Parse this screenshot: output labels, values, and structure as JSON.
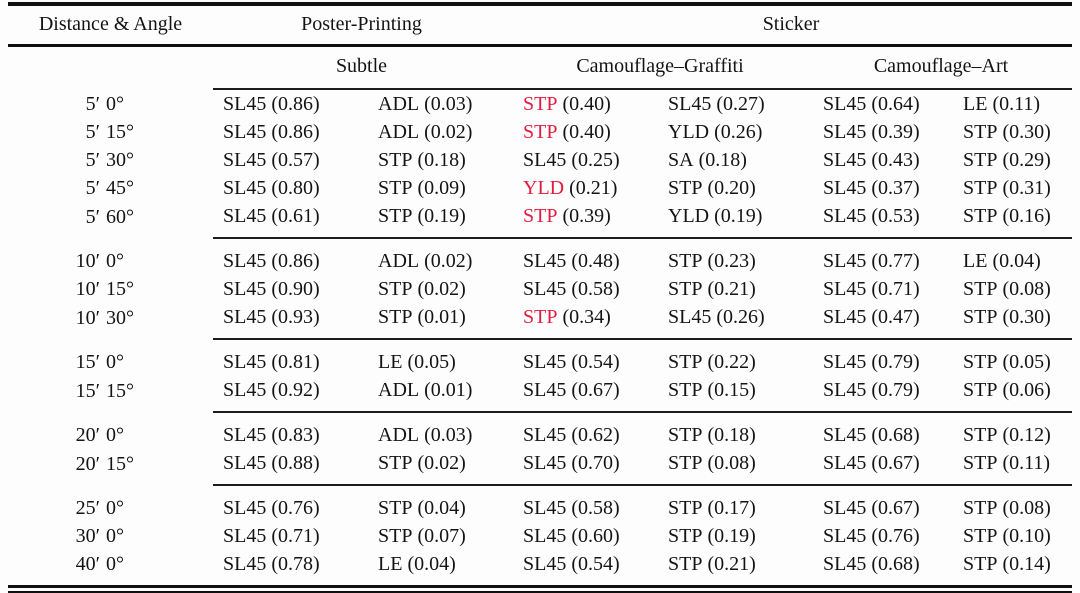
{
  "table": {
    "header": {
      "distance_angle": "Distance & Angle",
      "group_poster": "Poster-Printing",
      "group_sticker": "Sticker",
      "sub_subtle": "Subtle",
      "sub_graffiti": "Camouflage–Graffiti",
      "sub_art": "Camouflage–Art"
    },
    "blocks": [
      {
        "rows": [
          {
            "label": {
              "dist": "5′",
              "angle": "0°"
            },
            "cells": [
              {
                "abbr": "SL45",
                "val": "(0.86)",
                "red": false
              },
              {
                "abbr": "ADL",
                "val": "(0.03)",
                "red": false
              },
              {
                "abbr": "STP",
                "val": "(0.40)",
                "red": true
              },
              {
                "abbr": "SL45",
                "val": "(0.27)",
                "red": false
              },
              {
                "abbr": "SL45",
                "val": "(0.64)",
                "red": false
              },
              {
                "abbr": "LE",
                "val": "(0.11)",
                "red": false
              }
            ]
          },
          {
            "label": {
              "dist": "5′",
              "angle": "15°"
            },
            "cells": [
              {
                "abbr": "SL45",
                "val": "(0.86)",
                "red": false
              },
              {
                "abbr": "ADL",
                "val": "(0.02)",
                "red": false
              },
              {
                "abbr": "STP",
                "val": "(0.40)",
                "red": true
              },
              {
                "abbr": "YLD",
                "val": "(0.26)",
                "red": false
              },
              {
                "abbr": "SL45",
                "val": "(0.39)",
                "red": false
              },
              {
                "abbr": "STP",
                "val": "(0.30)",
                "red": false
              }
            ]
          },
          {
            "label": {
              "dist": "5′",
              "angle": "30°"
            },
            "cells": [
              {
                "abbr": "SL45",
                "val": "(0.57)",
                "red": false
              },
              {
                "abbr": "STP",
                "val": "(0.18)",
                "red": false
              },
              {
                "abbr": "SL45",
                "val": "(0.25)",
                "red": false
              },
              {
                "abbr": "SA",
                "val": "(0.18)",
                "red": false
              },
              {
                "abbr": "SL45",
                "val": "(0.43)",
                "red": false
              },
              {
                "abbr": "STP",
                "val": "(0.29)",
                "red": false
              }
            ]
          },
          {
            "label": {
              "dist": "5′",
              "angle": "45°"
            },
            "cells": [
              {
                "abbr": "SL45",
                "val": "(0.80)",
                "red": false
              },
              {
                "abbr": "STP",
                "val": "(0.09)",
                "red": false
              },
              {
                "abbr": "YLD",
                "val": "(0.21)",
                "red": true
              },
              {
                "abbr": "STP",
                "val": "(0.20)",
                "red": false
              },
              {
                "abbr": "SL45",
                "val": "(0.37)",
                "red": false
              },
              {
                "abbr": "STP",
                "val": "(0.31)",
                "red": false
              }
            ]
          },
          {
            "label": {
              "dist": "5′",
              "angle": "60°"
            },
            "cells": [
              {
                "abbr": "SL45",
                "val": "(0.61)",
                "red": false
              },
              {
                "abbr": "STP",
                "val": "(0.19)",
                "red": false
              },
              {
                "abbr": "STP",
                "val": "(0.39)",
                "red": true
              },
              {
                "abbr": "YLD",
                "val": "(0.19)",
                "red": false
              },
              {
                "abbr": "SL45",
                "val": "(0.53)",
                "red": false
              },
              {
                "abbr": "STP",
                "val": "(0.16)",
                "red": false
              }
            ]
          }
        ]
      },
      {
        "rows": [
          {
            "label": {
              "dist": "10′",
              "angle": "0°"
            },
            "cells": [
              {
                "abbr": "SL45",
                "val": "(0.86)",
                "red": false
              },
              {
                "abbr": "ADL",
                "val": "(0.02)",
                "red": false
              },
              {
                "abbr": "SL45",
                "val": "(0.48)",
                "red": false
              },
              {
                "abbr": "STP",
                "val": "(0.23)",
                "red": false
              },
              {
                "abbr": "SL45",
                "val": "(0.77)",
                "red": false
              },
              {
                "abbr": "LE",
                "val": "(0.04)",
                "red": false
              }
            ]
          },
          {
            "label": {
              "dist": "10′",
              "angle": "15°"
            },
            "cells": [
              {
                "abbr": "SL45",
                "val": "(0.90)",
                "red": false
              },
              {
                "abbr": "STP",
                "val": "(0.02)",
                "red": false
              },
              {
                "abbr": "SL45",
                "val": "(0.58)",
                "red": false
              },
              {
                "abbr": "STP",
                "val": "(0.21)",
                "red": false
              },
              {
                "abbr": "SL45",
                "val": "(0.71)",
                "red": false
              },
              {
                "abbr": "STP",
                "val": "(0.08)",
                "red": false
              }
            ]
          },
          {
            "label": {
              "dist": "10′",
              "angle": "30°"
            },
            "cells": [
              {
                "abbr": "SL45",
                "val": "(0.93)",
                "red": false
              },
              {
                "abbr": "STP",
                "val": "(0.01)",
                "red": false
              },
              {
                "abbr": "STP",
                "val": "(0.34)",
                "red": true
              },
              {
                "abbr": "SL45",
                "val": "(0.26)",
                "red": false
              },
              {
                "abbr": "SL45",
                "val": "(0.47)",
                "red": false
              },
              {
                "abbr": "STP",
                "val": "(0.30)",
                "red": false
              }
            ]
          }
        ]
      },
      {
        "rows": [
          {
            "label": {
              "dist": "15′",
              "angle": "0°"
            },
            "cells": [
              {
                "abbr": "SL45",
                "val": "(0.81)",
                "red": false
              },
              {
                "abbr": "LE",
                "val": "(0.05)",
                "red": false
              },
              {
                "abbr": "SL45",
                "val": "(0.54)",
                "red": false
              },
              {
                "abbr": "STP",
                "val": "(0.22)",
                "red": false
              },
              {
                "abbr": "SL45",
                "val": "(0.79)",
                "red": false
              },
              {
                "abbr": "STP",
                "val": "(0.05)",
                "red": false
              }
            ]
          },
          {
            "label": {
              "dist": "15′",
              "angle": "15°"
            },
            "cells": [
              {
                "abbr": "SL45",
                "val": "(0.92)",
                "red": false
              },
              {
                "abbr": "ADL",
                "val": "(0.01)",
                "red": false
              },
              {
                "abbr": "SL45",
                "val": "(0.67)",
                "red": false
              },
              {
                "abbr": "STP",
                "val": "(0.15)",
                "red": false
              },
              {
                "abbr": "SL45",
                "val": "(0.79)",
                "red": false
              },
              {
                "abbr": "STP",
                "val": "(0.06)",
                "red": false
              }
            ]
          }
        ]
      },
      {
        "rows": [
          {
            "label": {
              "dist": "20′",
              "angle": "0°"
            },
            "cells": [
              {
                "abbr": "SL45",
                "val": "(0.83)",
                "red": false
              },
              {
                "abbr": "ADL",
                "val": "(0.03)",
                "red": false
              },
              {
                "abbr": "SL45",
                "val": "(0.62)",
                "red": false
              },
              {
                "abbr": "STP",
                "val": "(0.18)",
                "red": false
              },
              {
                "abbr": "SL45",
                "val": "(0.68)",
                "red": false
              },
              {
                "abbr": "STP",
                "val": "(0.12)",
                "red": false
              }
            ]
          },
          {
            "label": {
              "dist": "20′",
              "angle": "15°"
            },
            "cells": [
              {
                "abbr": "SL45",
                "val": "(0.88)",
                "red": false
              },
              {
                "abbr": "STP",
                "val": "(0.02)",
                "red": false
              },
              {
                "abbr": "SL45",
                "val": "(0.70)",
                "red": false
              },
              {
                "abbr": "STP",
                "val": "(0.08)",
                "red": false
              },
              {
                "abbr": "SL45",
                "val": "(0.67)",
                "red": false
              },
              {
                "abbr": "STP",
                "val": "(0.11)",
                "red": false
              }
            ]
          }
        ]
      },
      {
        "rows": [
          {
            "label": {
              "dist": "25′",
              "angle": "0°"
            },
            "cells": [
              {
                "abbr": "SL45",
                "val": "(0.76)",
                "red": false
              },
              {
                "abbr": "STP",
                "val": "(0.04)",
                "red": false
              },
              {
                "abbr": "SL45",
                "val": "(0.58)",
                "red": false
              },
              {
                "abbr": "STP",
                "val": "(0.17)",
                "red": false
              },
              {
                "abbr": "SL45",
                "val": "(0.67)",
                "red": false
              },
              {
                "abbr": "STP",
                "val": "(0.08)",
                "red": false
              }
            ]
          },
          {
            "label": {
              "dist": "30′",
              "angle": "0°"
            },
            "cells": [
              {
                "abbr": "SL45",
                "val": "(0.71)",
                "red": false
              },
              {
                "abbr": "STP",
                "val": "(0.07)",
                "red": false
              },
              {
                "abbr": "SL45",
                "val": "(0.60)",
                "red": false
              },
              {
                "abbr": "STP",
                "val": "(0.19)",
                "red": false
              },
              {
                "abbr": "SL45",
                "val": "(0.76)",
                "red": false
              },
              {
                "abbr": "STP",
                "val": "(0.10)",
                "red": false
              }
            ]
          },
          {
            "label": {
              "dist": "40′",
              "angle": "0°"
            },
            "cells": [
              {
                "abbr": "SL45",
                "val": "(0.78)",
                "red": false
              },
              {
                "abbr": "LE",
                "val": "(0.04)",
                "red": false
              },
              {
                "abbr": "SL45",
                "val": "(0.54)",
                "red": false
              },
              {
                "abbr": "STP",
                "val": "(0.21)",
                "red": false
              },
              {
                "abbr": "SL45",
                "val": "(0.68)",
                "red": false
              },
              {
                "abbr": "STP",
                "val": "(0.14)",
                "red": false
              }
            ]
          }
        ]
      }
    ]
  },
  "colors": {
    "highlight_red": "#e31b3f",
    "text": "#141414",
    "rule": "#101010"
  }
}
